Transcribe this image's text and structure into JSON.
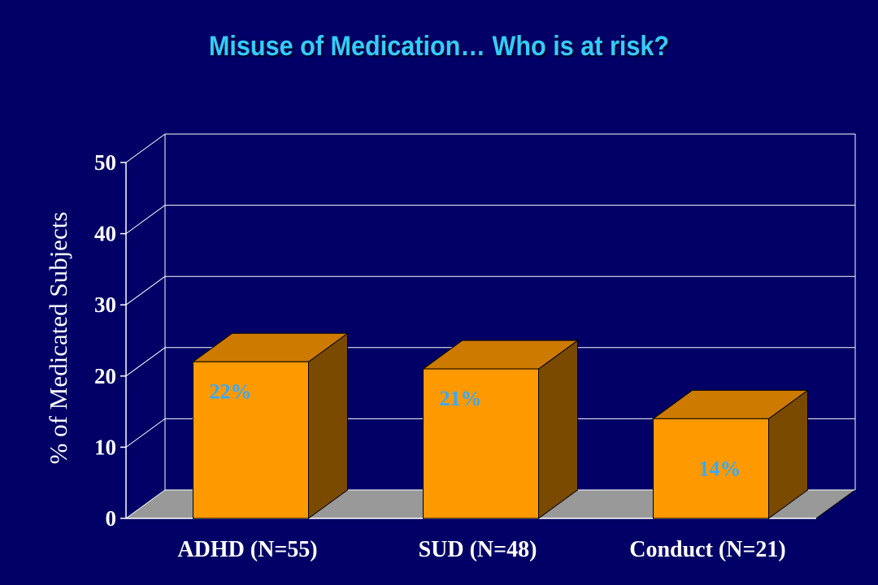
{
  "title": "Misuse of Medication… Who is at risk?",
  "chart_data": {
    "type": "bar",
    "title": "Misuse of Medication… Who is at risk?",
    "xlabel": "",
    "ylabel": "% of Medicated Subjects",
    "categories": [
      "ADHD (N=55)",
      "SUD (N=48)",
      "Conduct (N=21)"
    ],
    "values": [
      22,
      21,
      14
    ],
    "data_labels": [
      "22%",
      "21%",
      "14%"
    ],
    "ylim": [
      0,
      50
    ],
    "yticks": [
      "0",
      "10",
      "20",
      "30",
      "40",
      "50"
    ],
    "grid": true,
    "style": "3d-column",
    "colors": {
      "bar_front": "#ff9900",
      "bar_top": "#cc7a00",
      "bar_side": "#7a4a00",
      "floor": "#999999",
      "data_label": "#33aaff",
      "title": "#33ccff",
      "background": "#000066"
    }
  }
}
